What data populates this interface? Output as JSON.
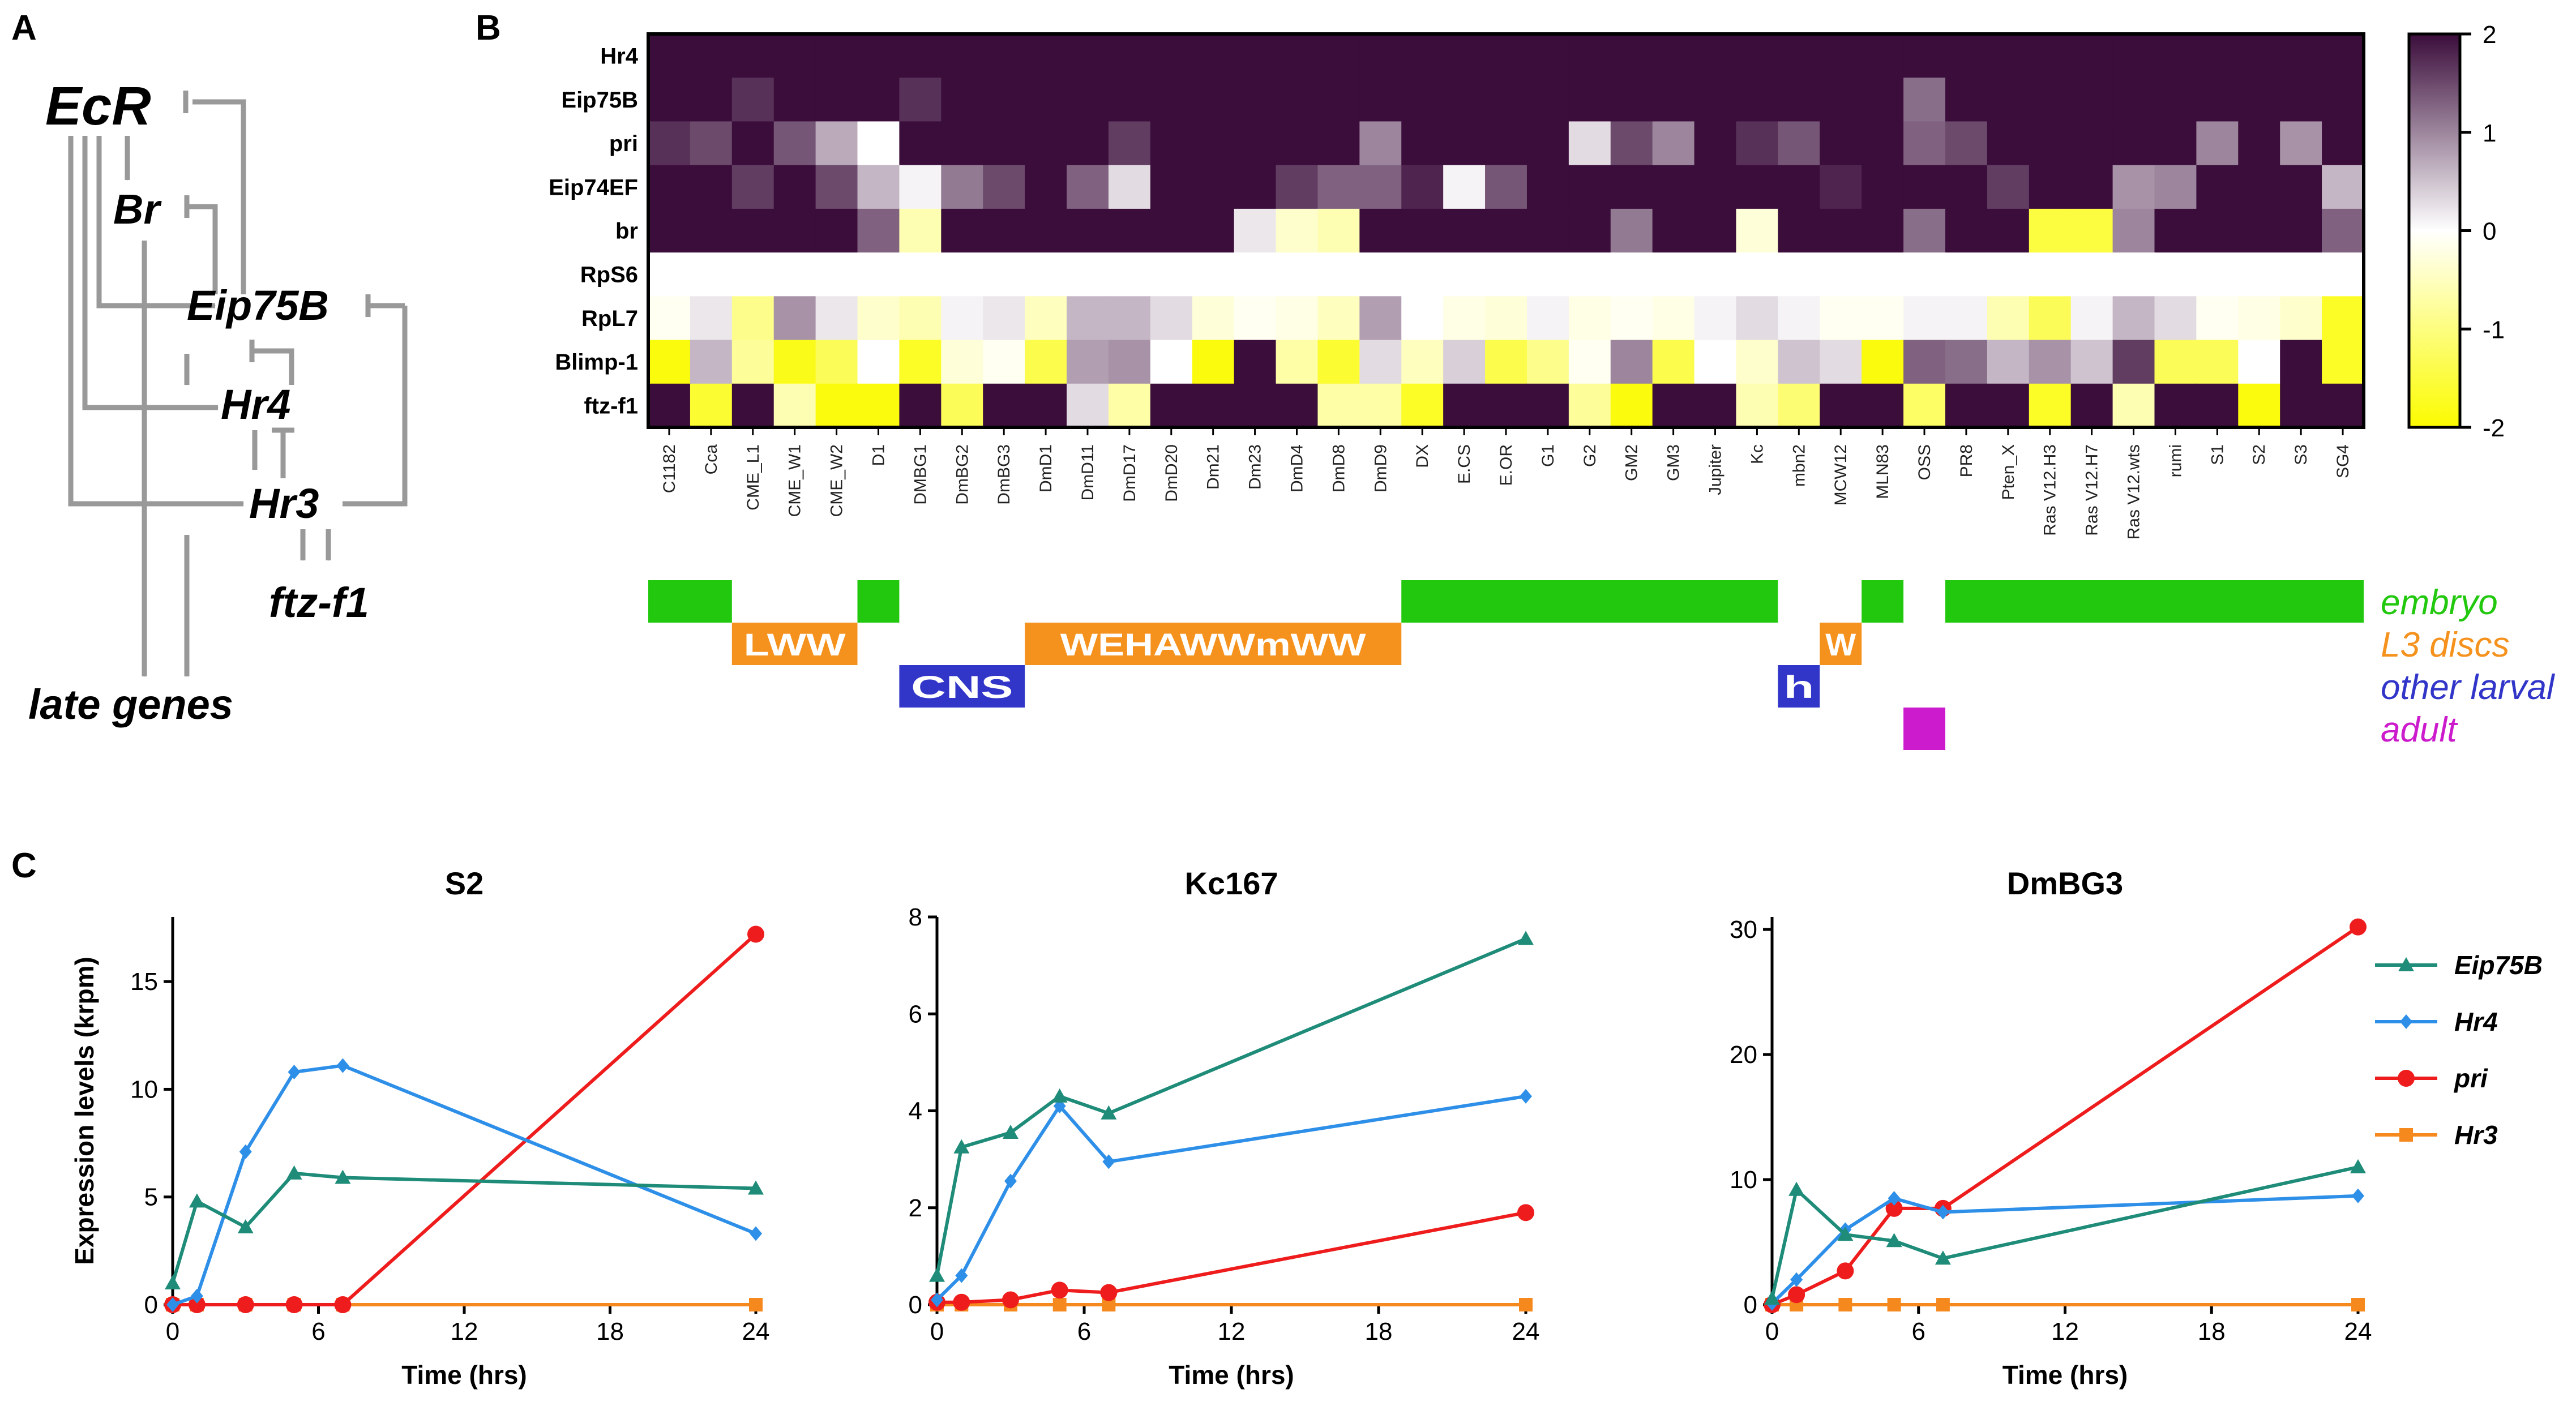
{
  "panels": {
    "a": "A",
    "b": "B",
    "c": "C"
  },
  "network": {
    "nodes": [
      {
        "id": "EcR",
        "label": "EcR"
      },
      {
        "id": "Br",
        "label": "Br"
      },
      {
        "id": "Eip75B",
        "label": "Eip75B"
      },
      {
        "id": "Hr4",
        "label": "Hr4"
      },
      {
        "id": "Hr3",
        "label": "Hr3"
      },
      {
        "id": "ftz-f1",
        "label": "ftz-f1"
      },
      {
        "id": "late",
        "label": "late genes"
      }
    ]
  },
  "chart_data": [
    {
      "type": "heatmap",
      "title": "",
      "rows": [
        "Hr4",
        "Eip75B",
        "pri",
        "Eip74EF",
        "br",
        "RpS6",
        "RpL7",
        "Blimp-1",
        "ftz-f1"
      ],
      "columns": [
        "C1182",
        "Cca",
        "CME_L1",
        "CME_W1",
        "CME_W2",
        "D1",
        "DMBG1",
        "DmBG2",
        "DmBG3",
        "DmD1",
        "DmD11",
        "DmD17",
        "DmD20",
        "Dm21",
        "Dm23",
        "DmD4",
        "DmD8",
        "DmD9",
        "DX",
        "E.CS",
        "E.OR",
        "G1",
        "G2",
        "GM2",
        "GM3",
        "Jupiter",
        "Kc",
        "mbn2",
        "MCW12",
        "MLN83",
        "OSS",
        "PR8",
        "Pten_X",
        "Ras V12.H3",
        "Ras V12.H7",
        "Ras V12.wts",
        "rumi",
        "S1",
        "S2",
        "S3",
        "SG4"
      ],
      "values": [
        [
          2.0,
          2.0,
          2.0,
          2.0,
          2.0,
          2.0,
          2.0,
          2.0,
          2.0,
          2.0,
          2.0,
          2.0,
          2.0,
          2.0,
          2.0,
          2.0,
          2.0,
          2.0,
          2.0,
          2.0,
          2.0,
          2.0,
          2.0,
          2.0,
          2.0,
          2.0,
          2.0,
          2.0,
          2.0,
          2.0,
          2.0,
          2.0,
          2.0,
          2.0,
          2.0,
          2.0,
          2.0,
          2.0,
          2.0,
          2.0,
          2.0
        ],
        [
          2.0,
          2.0,
          1.7,
          2.0,
          2.0,
          2.0,
          1.7,
          2.0,
          2.0,
          2.0,
          2.0,
          2.0,
          2.0,
          2.0,
          2.0,
          2.0,
          2.0,
          2.0,
          2.0,
          2.0,
          2.0,
          2.0,
          2.0,
          2.0,
          2.0,
          2.0,
          2.0,
          2.0,
          2.0,
          2.0,
          1.2,
          2.0,
          2.0,
          2.0,
          2.0,
          2.0,
          2.0,
          2.0,
          2.0,
          2.0,
          2.0
        ],
        [
          1.7,
          1.5,
          2.0,
          1.4,
          0.7,
          0.0,
          2.0,
          2.0,
          2.0,
          2.0,
          2.0,
          1.6,
          2.0,
          2.0,
          2.0,
          2.0,
          2.0,
          1.0,
          2.0,
          2.0,
          2.0,
          2.0,
          0.3,
          1.5,
          1.0,
          2.0,
          1.7,
          1.4,
          2.0,
          2.0,
          1.3,
          1.5,
          2.0,
          2.0,
          2.0,
          2.0,
          2.0,
          1.0,
          2.0,
          0.9,
          2.0
        ],
        [
          2.0,
          2.0,
          1.6,
          2.0,
          1.5,
          0.6,
          0.1,
          1.1,
          1.5,
          2.0,
          1.3,
          0.3,
          2.0,
          2.0,
          2.0,
          1.6,
          1.3,
          1.3,
          1.8,
          0.1,
          1.4,
          2.0,
          2.0,
          2.0,
          2.0,
          2.0,
          2.0,
          2.0,
          1.8,
          2.0,
          2.0,
          2.0,
          1.6,
          2.0,
          2.0,
          0.9,
          1.0,
          2.0,
          2.0,
          2.0,
          0.6
        ],
        [
          2.0,
          2.0,
          2.0,
          2.0,
          2.0,
          1.3,
          -0.6,
          2.0,
          2.0,
          2.0,
          2.0,
          2.0,
          2.0,
          2.0,
          0.2,
          -0.4,
          -0.6,
          2.0,
          2.0,
          2.0,
          2.0,
          2.0,
          2.0,
          1.1,
          2.0,
          2.0,
          -0.3,
          2.0,
          2.0,
          2.0,
          1.2,
          2.0,
          2.0,
          -1.5,
          -1.5,
          1.0,
          2.0,
          2.0,
          2.0,
          2.0,
          1.3
        ],
        [
          0.0,
          0.0,
          0.0,
          0.0,
          0.0,
          0.0,
          0.0,
          0.0,
          0.0,
          0.0,
          0.0,
          0.0,
          0.0,
          0.0,
          0.0,
          0.0,
          0.0,
          0.0,
          0.0,
          0.0,
          0.0,
          0.0,
          0.0,
          0.0,
          0.0,
          0.0,
          0.0,
          0.0,
          0.0,
          0.0,
          0.0,
          0.0,
          0.0,
          0.0,
          0.0,
          0.0,
          0.0,
          0.0,
          0.0,
          0.0,
          0.0
        ],
        [
          -0.1,
          0.2,
          -0.9,
          0.9,
          0.2,
          -0.4,
          -0.6,
          0.1,
          0.2,
          -0.5,
          0.6,
          0.6,
          0.3,
          -0.3,
          -0.1,
          -0.2,
          -0.5,
          0.8,
          0.0,
          -0.2,
          -0.3,
          0.1,
          -0.2,
          -0.1,
          -0.2,
          0.1,
          0.3,
          0.1,
          -0.1,
          -0.1,
          0.1,
          0.1,
          -0.6,
          -1.3,
          0.1,
          0.6,
          0.3,
          -0.1,
          -0.2,
          -0.4,
          -1.7
        ],
        [
          -1.9,
          0.6,
          -0.8,
          -1.8,
          -1.3,
          0.0,
          -1.7,
          -0.3,
          -0.1,
          -1.4,
          0.8,
          0.9,
          0.0,
          -1.9,
          2.0,
          -0.7,
          -1.6,
          0.3,
          -0.5,
          0.4,
          -1.4,
          -0.9,
          -0.1,
          1.0,
          -1.4,
          0.0,
          -0.4,
          0.5,
          0.3,
          -1.9,
          1.3,
          1.2,
          0.6,
          0.9,
          0.5,
          1.6,
          -1.3,
          -1.3,
          0.0,
          2.0,
          -1.7
        ],
        [
          2.0,
          -1.6,
          2.0,
          -0.6,
          -1.9,
          -1.9,
          2.0,
          -1.3,
          2.0,
          2.0,
          0.3,
          -0.7,
          2.0,
          2.0,
          2.0,
          2.0,
          -0.7,
          -0.7,
          -1.7,
          2.0,
          2.0,
          2.0,
          -0.8,
          -1.9,
          2.0,
          2.0,
          -0.6,
          -1.1,
          2.0,
          2.0,
          -1.2,
          2.0,
          2.0,
          -1.7,
          2.0,
          -0.6,
          2.0,
          2.0,
          -1.9,
          2.0,
          2.0
        ]
      ],
      "colorscale": {
        "min": -2,
        "mid": 0,
        "max": 2,
        "low": "#fbfb00",
        "mid_color": "#ffffff",
        "high": "#3b0d3b"
      },
      "colorbar_ticks": [
        "2",
        "1",
        "0",
        "-1",
        "-2"
      ]
    },
    {
      "type": "line",
      "title": "S2",
      "xlabel": "Time (hrs)",
      "ylabel": "Expression levels (krpm)",
      "x": [
        0,
        1,
        3,
        5,
        7,
        24
      ],
      "xlim": [
        0,
        24
      ],
      "ylim": [
        0,
        18
      ],
      "xticks": [
        0,
        6,
        12,
        18,
        24
      ],
      "yticks": [
        0,
        5,
        10,
        15
      ],
      "series": [
        {
          "name": "Eip75B",
          "values": [
            1.0,
            4.8,
            3.6,
            6.1,
            5.9,
            5.4
          ]
        },
        {
          "name": "Hr4",
          "values": [
            0.0,
            0.4,
            7.1,
            10.8,
            11.1,
            3.3
          ]
        },
        {
          "name": "pri",
          "values": [
            0.0,
            0.0,
            0.0,
            0.0,
            0.0,
            17.2
          ]
        },
        {
          "name": "Hr3",
          "values": [
            0.0,
            0.0,
            0.0,
            0.0,
            0.0,
            0.0
          ]
        }
      ]
    },
    {
      "type": "line",
      "title": "Kc167",
      "xlabel": "Time (hrs)",
      "ylabel": "",
      "x": [
        0,
        1,
        3,
        5,
        7,
        24
      ],
      "xlim": [
        0,
        24
      ],
      "ylim": [
        0,
        8
      ],
      "xticks": [
        0,
        6,
        12,
        18,
        24
      ],
      "yticks": [
        0,
        2,
        4,
        6,
        8
      ],
      "series": [
        {
          "name": "Eip75B",
          "values": [
            0.6,
            3.25,
            3.55,
            4.3,
            3.95,
            7.55
          ]
        },
        {
          "name": "Hr4",
          "values": [
            0.1,
            0.6,
            2.55,
            4.1,
            2.95,
            4.3
          ]
        },
        {
          "name": "pri",
          "values": [
            0.05,
            0.05,
            0.1,
            0.3,
            0.25,
            1.9
          ]
        },
        {
          "name": "Hr3",
          "values": [
            0.0,
            0.0,
            0.0,
            0.0,
            0.0,
            0.0
          ]
        }
      ]
    },
    {
      "type": "line",
      "title": "DmBG3",
      "xlabel": "Time (hrs)",
      "ylabel": "",
      "x": [
        0,
        1,
        3,
        5,
        7,
        24
      ],
      "xlim": [
        0,
        24
      ],
      "ylim": [
        0,
        31
      ],
      "xticks": [
        0,
        6,
        12,
        18,
        24
      ],
      "yticks": [
        0,
        10,
        20,
        30
      ],
      "series": [
        {
          "name": "Eip75B",
          "values": [
            0.5,
            9.2,
            5.6,
            5.1,
            3.7,
            11.0
          ]
        },
        {
          "name": "Hr4",
          "values": [
            0.1,
            2.0,
            6.0,
            8.5,
            7.4,
            8.7
          ]
        },
        {
          "name": "pri",
          "values": [
            0.0,
            0.8,
            2.7,
            7.7,
            7.7,
            30.2
          ]
        },
        {
          "name": "Hr3",
          "values": [
            0.0,
            0.0,
            0.0,
            0.0,
            0.0,
            0.0
          ]
        }
      ]
    }
  ],
  "tissue_track": {
    "legend": [
      {
        "key": "embryo",
        "label": "embryo",
        "color": "#22c80e"
      },
      {
        "key": "l3",
        "label": "L3 discs",
        "color": "#f5921e"
      },
      {
        "key": "larval",
        "label": "other larval",
        "color": "#3236c8"
      },
      {
        "key": "adult",
        "label": "adult",
        "color": "#cc1bcc"
      }
    ],
    "segments": [
      {
        "type": "embryo",
        "start": 0,
        "end": 2,
        "text": ""
      },
      {
        "type": "l3",
        "start": 2,
        "end": 5,
        "text": "LWW"
      },
      {
        "type": "embryo",
        "start": 5,
        "end": 6,
        "text": ""
      },
      {
        "type": "larval",
        "start": 6,
        "end": 9,
        "text": "CNS"
      },
      {
        "type": "l3",
        "start": 9,
        "end": 18,
        "text": "WEHAWWmWW"
      },
      {
        "type": "embryo",
        "start": 18,
        "end": 27,
        "text": ""
      },
      {
        "type": "larval",
        "start": 27,
        "end": 28,
        "text": "h"
      },
      {
        "type": "l3",
        "start": 28,
        "end": 29,
        "text": "W"
      },
      {
        "type": "embryo",
        "start": 29,
        "end": 30,
        "text": ""
      },
      {
        "type": "adult",
        "start": 30,
        "end": 31,
        "text": ""
      },
      {
        "type": "embryo",
        "start": 31,
        "end": 41,
        "text": ""
      }
    ]
  },
  "series_styles": [
    {
      "name": "Eip75B",
      "color": "#1e8c78",
      "marker": "triangle"
    },
    {
      "name": "Hr4",
      "color": "#2e8fe8",
      "marker": "diamond"
    },
    {
      "name": "pri",
      "color": "#ee1c1c",
      "marker": "circle"
    },
    {
      "name": "Hr3",
      "color": "#f5891e",
      "marker": "square"
    }
  ]
}
